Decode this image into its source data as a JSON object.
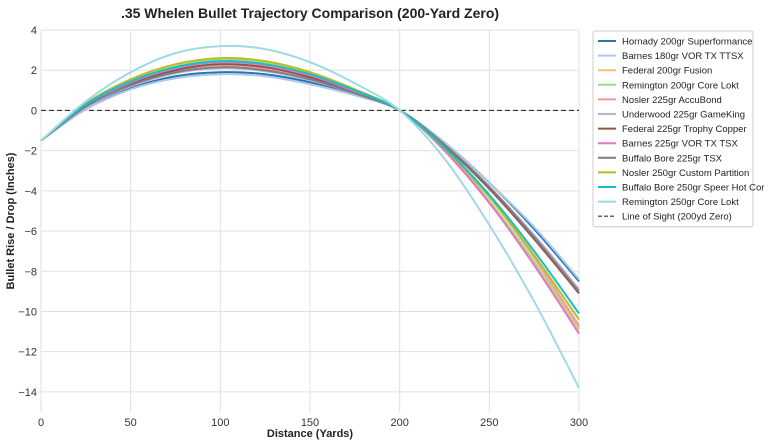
{
  "chart_data": {
    "type": "line",
    "title": ".35 Whelen Bullet Trajectory Comparison (200-Yard Zero)",
    "xlabel": "Distance (Yards)",
    "ylabel": "Bullet Rise / Drop (Inches)",
    "xlim": [
      0,
      300
    ],
    "ylim": [
      -15,
      4
    ],
    "xticks": [
      0,
      50,
      100,
      150,
      200,
      250,
      300
    ],
    "yticks": [
      4,
      2,
      0,
      -2,
      -4,
      -6,
      -8,
      -10,
      -12,
      -14
    ],
    "grid": true,
    "legend_position": "outside-right-top",
    "x": [
      0,
      25,
      50,
      75,
      100,
      125,
      150,
      175,
      200,
      225,
      250,
      275,
      300
    ],
    "series": [
      {
        "name": "Hornady 200gr Superformance",
        "color": "#1f77b4",
        "values": [
          -1.5,
          0.1,
          1.1,
          1.7,
          1.9,
          1.8,
          1.4,
          0.8,
          0,
          -1.6,
          -3.6,
          -5.9,
          -8.5
        ]
      },
      {
        "name": "Barnes 180gr VOR TX TTSX",
        "color": "#aec7e8",
        "values": [
          -1.5,
          0.05,
          1.05,
          1.6,
          1.8,
          1.7,
          1.3,
          0.75,
          0,
          -1.6,
          -3.6,
          -5.8,
          -8.4
        ]
      },
      {
        "name": "Federal 200gr Fusion",
        "color": "#ffbb78",
        "values": [
          -1.5,
          0.3,
          1.5,
          2.2,
          2.55,
          2.4,
          1.85,
          1.0,
          0,
          -2.0,
          -4.6,
          -7.6,
          -10.9
        ]
      },
      {
        "name": "Remington 200gr Core Lokt",
        "color": "#98df8a",
        "values": [
          -1.5,
          0.3,
          1.5,
          2.2,
          2.5,
          2.35,
          1.8,
          1.0,
          0,
          -1.95,
          -4.5,
          -7.5,
          -10.8
        ]
      },
      {
        "name": "Nosler 225gr AccuBond",
        "color": "#ff9896",
        "values": [
          -1.5,
          0.25,
          1.35,
          2.0,
          2.25,
          2.1,
          1.65,
          0.9,
          0,
          -1.9,
          -4.3,
          -7.3,
          -10.7
        ]
      },
      {
        "name": "Underwood 225gr GameKing",
        "color": "#c5b0d5",
        "values": [
          -1.5,
          0.15,
          1.2,
          1.85,
          2.1,
          1.95,
          1.5,
          0.85,
          0,
          -1.7,
          -3.8,
          -6.2,
          -8.9
        ]
      },
      {
        "name": "Federal 225gr Trophy Copper",
        "color": "#8c564b",
        "values": [
          -1.5,
          0.2,
          1.3,
          2.0,
          2.3,
          2.15,
          1.65,
          0.9,
          0,
          -1.75,
          -3.9,
          -6.4,
          -9.1
        ]
      },
      {
        "name": "Barnes 225gr VOR TX TSX",
        "color": "#e377c2",
        "values": [
          -1.5,
          0.25,
          1.4,
          2.1,
          2.4,
          2.25,
          1.75,
          0.95,
          0,
          -2.0,
          -4.6,
          -7.7,
          -11.1
        ]
      },
      {
        "name": "Buffalo Bore 225gr TSX",
        "color": "#7f7f7f",
        "values": [
          -1.5,
          0.2,
          1.25,
          1.9,
          2.15,
          2.0,
          1.55,
          0.85,
          0,
          -1.7,
          -3.8,
          -6.3,
          -9.0
        ]
      },
      {
        "name": "Nosler 250gr Custom Partition",
        "color": "#bcbd22",
        "values": [
          -1.5,
          0.35,
          1.55,
          2.3,
          2.6,
          2.45,
          1.9,
          1.05,
          0,
          -1.9,
          -4.3,
          -7.2,
          -10.4
        ]
      },
      {
        "name": "Buffalo Bore 250gr Speer Hot Cor",
        "color": "#17becf",
        "values": [
          -1.5,
          0.3,
          1.45,
          2.15,
          2.45,
          2.3,
          1.8,
          1.0,
          0,
          -1.85,
          -4.2,
          -7.0,
          -10.1
        ]
      },
      {
        "name": "Remington 250gr Core Lokt",
        "color": "#9edae5",
        "values": [
          -1.5,
          0.45,
          1.9,
          2.85,
          3.2,
          3.05,
          2.4,
          1.35,
          0,
          -2.4,
          -5.7,
          -9.5,
          -13.8
        ]
      }
    ],
    "reference_line": {
      "name": "Line of Sight (200yd Zero)",
      "y": 0,
      "style": "dashed",
      "color": "#333333"
    }
  }
}
